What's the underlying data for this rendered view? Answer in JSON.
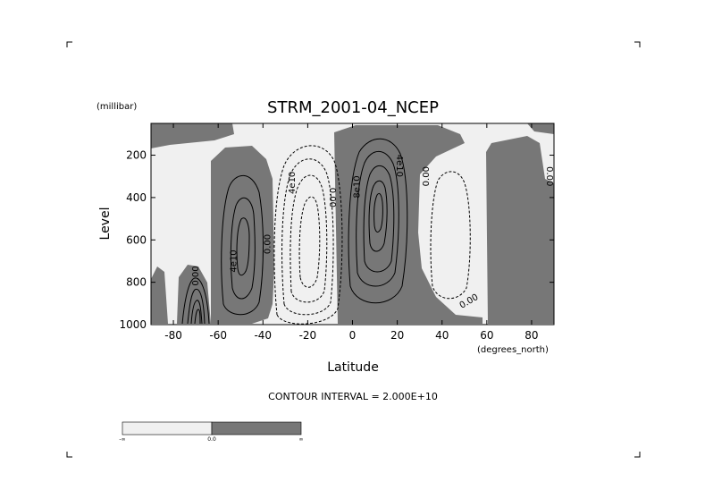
{
  "chart_data": {
    "type": "contour",
    "title": "STRM_2001-04_NCEP",
    "xlabel": "Latitude",
    "ylabel": "Level",
    "x_unit": "(degrees_north)",
    "y_unit": "(millibar)",
    "x_range": [
      -90,
      90
    ],
    "y_range": [
      1000,
      50
    ],
    "y_inverted": true,
    "x_ticks": [
      -80,
      -60,
      -40,
      -20,
      0,
      20,
      40,
      60,
      80
    ],
    "y_ticks": [
      200,
      400,
      600,
      800,
      1000
    ],
    "contour_interval_text": "CONTOUR INTERVAL = 2.000E+10",
    "colors": {
      "positive_fill": "#777777",
      "negative_fill": "#f0f0f0",
      "line": "#000000"
    },
    "contour_labels": [
      {
        "text": "0.00",
        "x": -70,
        "y": 770,
        "angle": -90
      },
      {
        "text": "4e10",
        "x": -53,
        "y": 700,
        "angle": -90
      },
      {
        "text": "0.00",
        "x": -38,
        "y": 620,
        "angle": -90
      },
      {
        "text": "4e10",
        "x": -27,
        "y": 330,
        "angle": -90
      },
      {
        "text": "0.00",
        "x": -9,
        "y": 400,
        "angle": 90
      },
      {
        "text": "8e10",
        "x": 2,
        "y": 350,
        "angle": -90
      },
      {
        "text": "4e10",
        "x": 21,
        "y": 250,
        "angle": 90
      },
      {
        "text": "0.00",
        "x": 33,
        "y": 300,
        "angle": -90
      },
      {
        "text": "0.00",
        "x": 52,
        "y": 890,
        "angle": -30
      },
      {
        "text": "0.00",
        "x": 88,
        "y": 300,
        "angle": 90
      }
    ],
    "colorbar": {
      "min_label": "-∞",
      "mid_label": "0.0",
      "max_label": "∞"
    }
  }
}
